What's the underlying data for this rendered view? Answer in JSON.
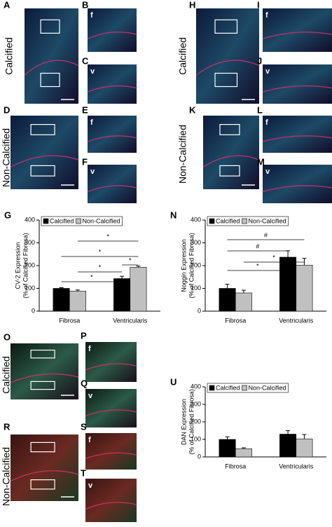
{
  "panels": [
    {
      "letter": "A"
    },
    {
      "letter": "B",
      "tag": "f"
    },
    {
      "letter": "C",
      "tag": "v"
    },
    {
      "letter": "D"
    },
    {
      "letter": "E",
      "tag": "f"
    },
    {
      "letter": "F",
      "tag": "v"
    },
    {
      "letter": "H"
    },
    {
      "letter": "I",
      "tag": "f"
    },
    {
      "letter": "J",
      "tag": "v"
    },
    {
      "letter": "K"
    },
    {
      "letter": "L",
      "tag": "f"
    },
    {
      "letter": "M",
      "tag": "v"
    },
    {
      "letter": "O"
    },
    {
      "letter": "P",
      "tag": "f"
    },
    {
      "letter": "Q",
      "tag": "v"
    },
    {
      "letter": "R"
    },
    {
      "letter": "S",
      "tag": "f"
    },
    {
      "letter": "T",
      "tag": "v"
    }
  ],
  "row_labels": [
    "Calcified",
    "Non-Calcified",
    "Calcified",
    "Non-Calcified",
    "Calcified",
    "Non-Calcified"
  ],
  "chart_data": [
    {
      "type": "bar",
      "letter": "G",
      "y_label": [
        "CV-2 Expression",
        "(% of Calcified Fibrosa)"
      ],
      "categories": [
        "Fibrosa",
        "Ventricularis"
      ],
      "series": [
        {
          "name": "Calcified",
          "color": "#000000",
          "values": [
            100,
            143
          ],
          "errors": [
            3,
            10
          ]
        },
        {
          "name": "Non-Calcified",
          "color": "#c0c0c0",
          "values": [
            88,
            193
          ],
          "errors": [
            5,
            5
          ]
        }
      ],
      "ylim": [
        0,
        400
      ],
      "yticks": [
        0,
        100,
        200,
        300,
        400
      ],
      "annotations": [
        "*",
        "*",
        "*",
        "*",
        "*"
      ]
    },
    {
      "type": "bar",
      "letter": "N",
      "y_label": [
        "Noggin Expression",
        "(% of Calcified Fibrosa)"
      ],
      "categories": [
        "Fibrosa",
        "Ventricularis"
      ],
      "series": [
        {
          "name": "Calcified",
          "color": "#000000",
          "values": [
            100,
            237
          ],
          "errors": [
            18,
            28
          ]
        },
        {
          "name": "Non-Calcified",
          "color": "#c0c0c0",
          "values": [
            80,
            202
          ],
          "errors": [
            12,
            30
          ]
        }
      ],
      "ylim": [
        0,
        400
      ],
      "yticks": [
        0,
        100,
        200,
        300,
        400
      ],
      "annotations": [
        "#",
        "#",
        "*",
        "*"
      ]
    },
    {
      "type": "bar",
      "letter": "U",
      "y_label": [
        "DAN Expression",
        "(% of Calcified Fibrosa)"
      ],
      "categories": [
        "Fibrosa",
        "Ventricularis"
      ],
      "series": [
        {
          "name": "Calcified",
          "color": "#000000",
          "values": [
            100,
            130
          ],
          "errors": [
            15,
            20
          ]
        },
        {
          "name": "Non-Calcified",
          "color": "#c0c0c0",
          "values": [
            47,
            103
          ],
          "errors": [
            5,
            25
          ]
        }
      ],
      "ylim": [
        0,
        400
      ],
      "yticks": [
        0,
        100,
        200,
        300,
        400
      ],
      "annotations": []
    }
  ]
}
